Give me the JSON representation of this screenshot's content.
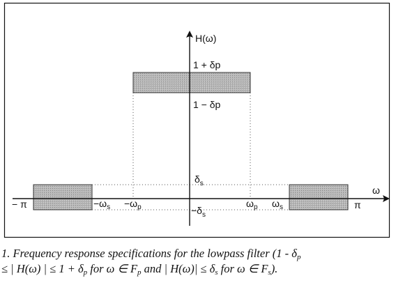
{
  "labels": {
    "y_axis": "H(ω)",
    "x_axis": "ω",
    "upper_bound": "1 + δp",
    "lower_bound": "1 − δp",
    "stop_upper": "δ",
    "stop_upper_sub": "s",
    "stop_lower": "−δ",
    "stop_lower_sub": "s",
    "neg_pi": "− π",
    "pos_pi": "π",
    "neg_omega_s": "−ω",
    "neg_omega_s_sub": "s",
    "neg_omega_p": "−ω",
    "neg_omega_p_sub": "p",
    "omega_p": "ω",
    "omega_p_sub": "p",
    "omega_s": "ω",
    "omega_s_sub": "s"
  },
  "caption": {
    "part1": "1. Frequency response specifications for the lowpass filter (1 - δ",
    "sub1": "p",
    "part2": "≤ | H(ω) | ≤ 1 + δ",
    "sub2": "p",
    "part3": " for ω ∈ F",
    "sub3": "p",
    "part4": " and | H(ω)| ≤ δ",
    "sub4": "s",
    "part5": " for ω ∈ F",
    "sub5": "s",
    "part6": ")."
  }
}
